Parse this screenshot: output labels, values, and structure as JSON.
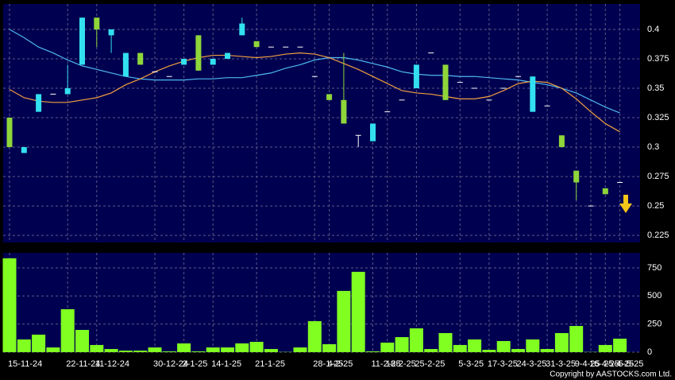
{
  "chart_data": [
    {
      "type": "candlestick",
      "open": [
        0.325,
        0.295,
        0.33,
        0.345,
        0.345,
        0.37,
        0.41,
        0.395,
        0.36,
        0.38,
        0.364,
        0.36,
        0.37,
        0.395,
        0.37,
        0.375,
        0.395,
        0.39,
        0.385,
        0.385,
        0.385,
        0.36,
        0.345,
        0.34,
        0.31,
        0.305,
        0.33,
        0.34,
        0.35,
        0.38,
        0.37,
        0.355,
        0.35,
        0.34,
        0.35,
        0.36,
        0.33,
        0.335,
        0.31,
        0.28,
        0.25,
        0.265,
        0.27
      ],
      "high": [
        0.325,
        0.3,
        0.345,
        0.345,
        0.37,
        0.41,
        0.41,
        0.4,
        0.38,
        0.38,
        0.364,
        0.36,
        0.375,
        0.395,
        0.375,
        0.38,
        0.41,
        0.39,
        0.385,
        0.385,
        0.385,
        0.36,
        0.345,
        0.38,
        0.31,
        0.32,
        0.33,
        0.34,
        0.37,
        0.38,
        0.37,
        0.355,
        0.35,
        0.34,
        0.35,
        0.36,
        0.36,
        0.335,
        0.31,
        0.28,
        0.25,
        0.265,
        0.27
      ],
      "low": [
        0.3,
        0.295,
        0.33,
        0.345,
        0.345,
        0.37,
        0.385,
        0.38,
        0.36,
        0.37,
        0.364,
        0.36,
        0.37,
        0.365,
        0.37,
        0.375,
        0.395,
        0.385,
        0.385,
        0.385,
        0.385,
        0.36,
        0.34,
        0.32,
        0.3,
        0.305,
        0.33,
        0.34,
        0.35,
        0.38,
        0.34,
        0.355,
        0.35,
        0.34,
        0.35,
        0.36,
        0.33,
        0.335,
        0.3,
        0.255,
        0.25,
        0.26,
        0.27
      ],
      "close": [
        0.3,
        0.3,
        0.345,
        0.345,
        0.35,
        0.41,
        0.4,
        0.4,
        0.38,
        0.37,
        0.364,
        0.36,
        0.375,
        0.365,
        0.375,
        0.38,
        0.405,
        0.385,
        0.385,
        0.385,
        0.385,
        0.36,
        0.34,
        0.32,
        0.31,
        0.32,
        0.33,
        0.34,
        0.37,
        0.38,
        0.34,
        0.355,
        0.35,
        0.34,
        0.35,
        0.36,
        0.36,
        0.335,
        0.3,
        0.27,
        0.25,
        0.26,
        0.27
      ],
      "up_color": "#33e0f0",
      "down_color": "#8fd63a",
      "lines": [
        {
          "color": "#4fb8f0",
          "values": [
            0.4,
            0.393,
            0.385,
            0.38,
            0.374,
            0.369,
            0.366,
            0.363,
            0.36,
            0.358,
            0.357,
            0.357,
            0.357,
            0.358,
            0.358,
            0.359,
            0.359,
            0.361,
            0.363,
            0.367,
            0.37,
            0.374,
            0.376,
            0.376,
            0.374,
            0.371,
            0.368,
            0.364,
            0.362,
            0.361,
            0.361,
            0.36,
            0.36,
            0.359,
            0.358,
            0.357,
            0.355,
            0.353,
            0.35,
            0.346,
            0.34,
            0.334,
            0.329
          ]
        },
        {
          "color": "#f0a040",
          "values": [
            0.349,
            0.342,
            0.339,
            0.338,
            0.338,
            0.34,
            0.342,
            0.346,
            0.353,
            0.358,
            0.364,
            0.369,
            0.373,
            0.376,
            0.378,
            0.378,
            0.377,
            0.376,
            0.377,
            0.379,
            0.38,
            0.379,
            0.376,
            0.371,
            0.366,
            0.36,
            0.354,
            0.348,
            0.346,
            0.345,
            0.343,
            0.341,
            0.341,
            0.343,
            0.348,
            0.354,
            0.356,
            0.355,
            0.35,
            0.341,
            0.33,
            0.32,
            0.313
          ]
        }
      ],
      "ylim": [
        0.219,
        0.4216
      ],
      "yticks": [
        0.4,
        0.375,
        0.35,
        0.325,
        0.3,
        0.275,
        0.25,
        0.225
      ],
      "grid": true
    },
    {
      "type": "bar",
      "categories": [
        "15-11-24",
        null,
        null,
        null,
        "22-11-24",
        null,
        "11-12-24",
        null,
        null,
        null,
        "30-12-24",
        null,
        "2-1-25",
        null,
        "14-1-25",
        null,
        null,
        "21-1-25",
        null,
        null,
        null,
        "28-1-25",
        "4-2-25",
        null,
        null,
        "11-2-25",
        "18-2-25",
        null,
        "25-2-25",
        null,
        null,
        "5-3-25",
        null,
        "17-3-25",
        null,
        "24-3-25",
        null,
        "31-3-25",
        null,
        "9-4-25",
        "16-4-25",
        "25-4-25",
        "5-5-25"
      ],
      "values": [
        835,
        113,
        156,
        42,
        382,
        198,
        64,
        28,
        14,
        14,
        42,
        7,
        78,
        7,
        42,
        42,
        78,
        92,
        28,
        2,
        42,
        276,
        71,
        545,
        715,
        7,
        85,
        134,
        212,
        28,
        170,
        64,
        113,
        21,
        99,
        28,
        113,
        28,
        170,
        233,
        2,
        64,
        120
      ],
      "color": "#80ff20",
      "ylim": [
        0,
        884
      ],
      "yticks": [
        0,
        250,
        500,
        750
      ],
      "grid": true
    }
  ],
  "footer": "Copyright by AASTOCKS.com Ltd."
}
